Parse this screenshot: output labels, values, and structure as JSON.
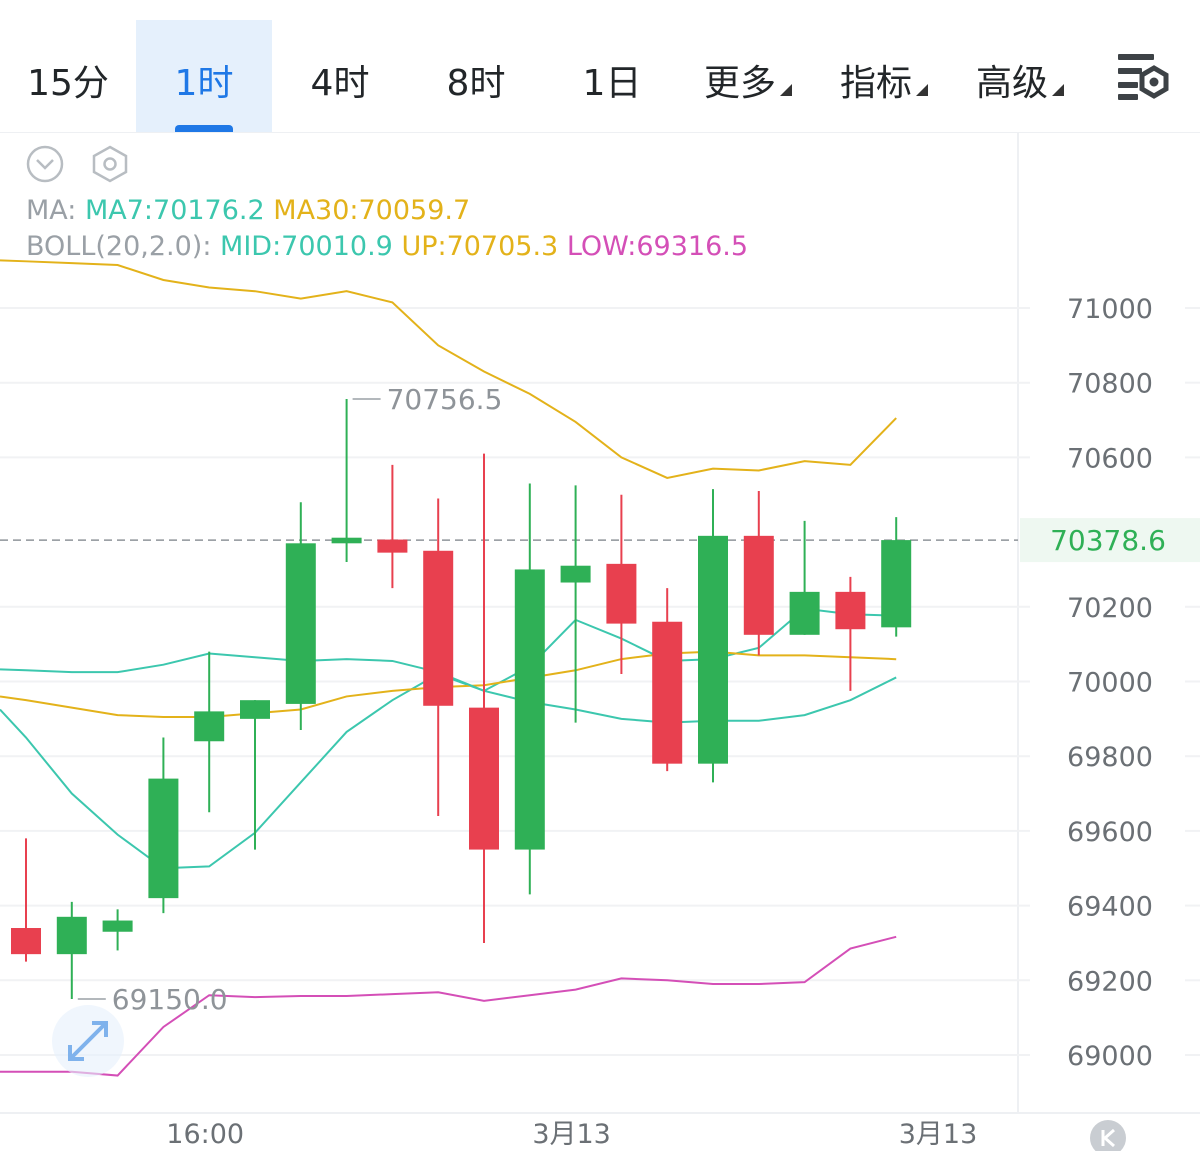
{
  "toolbar": {
    "tabs": [
      {
        "label": "15分",
        "active": false,
        "dropdown": false
      },
      {
        "label": "1时",
        "active": true,
        "dropdown": false
      },
      {
        "label": "4时",
        "active": false,
        "dropdown": false
      },
      {
        "label": "8时",
        "active": false,
        "dropdown": false
      },
      {
        "label": "1日",
        "active": false,
        "dropdown": false
      },
      {
        "label": "更多",
        "active": false,
        "dropdown": true
      },
      {
        "label": "指标",
        "active": false,
        "dropdown": true
      },
      {
        "label": "高级",
        "active": false,
        "dropdown": true
      }
    ],
    "settings_icon": "chart-settings-icon"
  },
  "indicators": {
    "ma_label": "MA:",
    "ma7": "MA7:70176.2",
    "ma30": "MA30:70059.7",
    "boll_label": "BOLL(20,2.0):",
    "boll_mid": "MID:70010.9",
    "boll_up": "UP:70705.3",
    "boll_low": "LOW:69316.5"
  },
  "colors": {
    "up": "#2fb056",
    "down": "#e8404f",
    "ma7": "#3cc7ae",
    "ma30": "#e3b21a",
    "boll_up": "#e3b21a",
    "boll_low": "#d44fb7",
    "boll_mid": "#3cc7ae",
    "active_tab": "#1f78e6",
    "price_tag_text": "#2fb056"
  },
  "chart_data": {
    "type": "candlestick",
    "y_ticks": [
      71000,
      70800,
      70600,
      70200,
      70000,
      69800,
      69600,
      69400,
      69200,
      69000
    ],
    "ylim": [
      68850,
      71150
    ],
    "x_labels": [
      {
        "index": 4,
        "label": "16:00"
      },
      {
        "index": 12,
        "label": "3月13"
      },
      {
        "index": 20,
        "label": "3月13"
      }
    ],
    "last_price": 70378.6,
    "last_price_label": "70378.6",
    "max_marker": {
      "index": 7,
      "value": 70756.5,
      "label": "70756.5"
    },
    "min_marker": {
      "index": 1,
      "value": 69150.0,
      "label": "69150.0"
    },
    "candles": [
      {
        "o": 69340,
        "h": 69580,
        "l": 69250,
        "c": 69270
      },
      {
        "o": 69270,
        "h": 69410,
        "l": 69150,
        "c": 69370
      },
      {
        "o": 69330,
        "h": 69390,
        "l": 69280,
        "c": 69360
      },
      {
        "o": 69420,
        "h": 69850,
        "l": 69380,
        "c": 69740
      },
      {
        "o": 69840,
        "h": 70080,
        "l": 69650,
        "c": 69920
      },
      {
        "o": 69900,
        "h": 69950,
        "l": 69550,
        "c": 69950
      },
      {
        "o": 69940,
        "h": 70480,
        "l": 69870,
        "c": 70370
      },
      {
        "o": 70370,
        "h": 70756.5,
        "l": 70320,
        "c": 70385
      },
      {
        "o": 70380,
        "h": 70580,
        "l": 70250,
        "c": 70345
      },
      {
        "o": 70350,
        "h": 70490,
        "l": 69640,
        "c": 69935
      },
      {
        "o": 69930,
        "h": 70610,
        "l": 69300,
        "c": 69550
      },
      {
        "o": 69550,
        "h": 70530,
        "l": 69430,
        "c": 70300
      },
      {
        "o": 70265,
        "h": 70525,
        "l": 69890,
        "c": 70310
      },
      {
        "o": 70315,
        "h": 70500,
        "l": 70020,
        "c": 70155
      },
      {
        "o": 70160,
        "h": 70250,
        "l": 69760,
        "c": 69780
      },
      {
        "o": 69780,
        "h": 70515,
        "l": 69730,
        "c": 70390
      },
      {
        "o": 70390,
        "h": 70510,
        "l": 70070,
        "c": 70125
      },
      {
        "o": 70125,
        "h": 70430,
        "l": 70125,
        "c": 70240
      },
      {
        "o": 70240,
        "h": 70280,
        "l": 69975,
        "c": 70140
      },
      {
        "o": 70145,
        "h": 70440,
        "l": 70120,
        "c": 70378.6
      }
    ],
    "series": [
      {
        "name": "MA7",
        "values": [
          69850,
          69700,
          69590,
          69500,
          69505,
          69595,
          69730,
          69865,
          69950,
          70020,
          69975,
          70040,
          70165,
          70115,
          70055,
          70060,
          70090,
          70195,
          70180,
          70176.2
        ]
      },
      {
        "name": "MA30",
        "values": [
          69950,
          69930,
          69910,
          69905,
          69905,
          69915,
          69925,
          69960,
          69975,
          69985,
          69990,
          70010,
          70030,
          70060,
          70075,
          70080,
          70070,
          70070,
          70065,
          70059.7
        ]
      },
      {
        "name": "MID",
        "values": [
          70030,
          70025,
          70025,
          70045,
          70075,
          70065,
          70055,
          70060,
          70055,
          70025,
          69975,
          69945,
          69925,
          69900,
          69890,
          69895,
          69895,
          69910,
          69950,
          70010.9
        ]
      },
      {
        "name": "UP",
        "values": [
          71125,
          71120,
          71115,
          71075,
          71055,
          71045,
          71025,
          71045,
          71015,
          70900,
          70830,
          70770,
          70695,
          70600,
          70545,
          70570,
          70565,
          70590,
          70580,
          70705.3
        ]
      },
      {
        "name": "LOW",
        "values": [
          68955,
          68955,
          68945,
          69075,
          69160,
          69155,
          69158,
          69158,
          69163,
          69168,
          69145,
          69160,
          69175,
          69205,
          69200,
          69190,
          69190,
          69195,
          69285,
          69316.5
        ]
      }
    ]
  }
}
